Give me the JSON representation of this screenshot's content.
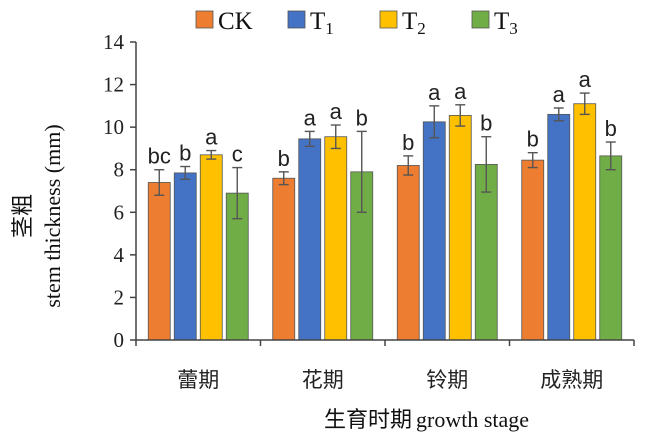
{
  "chart_data": {
    "type": "bar",
    "xlabel_cn": "生育时期",
    "xlabel_en": "growth stage",
    "ylabel_cn": "茎粗",
    "ylabel_en": "stem thickness (mm)",
    "ylim": [
      0,
      14
    ],
    "yticks": [
      0,
      2,
      4,
      6,
      8,
      10,
      12,
      14
    ],
    "categories": [
      "蕾期",
      "花期",
      "铃期",
      "成熟期"
    ],
    "legend_position": "top",
    "grid": false,
    "series": [
      {
        "name": "CK",
        "sub": "",
        "color": "#ED7D31",
        "values": [
          7.4,
          7.6,
          8.2,
          8.45
        ],
        "errors": [
          0.6,
          0.3,
          0.45,
          0.35
        ],
        "labels": [
          "bc",
          "b",
          "b",
          "b"
        ]
      },
      {
        "name": "T",
        "sub": "1",
        "color": "#4472C4",
        "values": [
          7.85,
          9.45,
          10.25,
          10.6
        ],
        "errors": [
          0.3,
          0.35,
          0.75,
          0.3
        ],
        "labels": [
          "b",
          "a",
          "a",
          "a"
        ]
      },
      {
        "name": "T",
        "sub": "2",
        "color": "#FFC000",
        "values": [
          8.7,
          9.55,
          10.55,
          11.1
        ],
        "errors": [
          0.2,
          0.55,
          0.5,
          0.5
        ],
        "labels": [
          "a",
          "a",
          "a",
          "a"
        ]
      },
      {
        "name": "T",
        "sub": "3",
        "color": "#70AD47",
        "values": [
          6.9,
          7.9,
          8.25,
          8.65
        ],
        "errors": [
          1.2,
          1.9,
          1.3,
          0.65
        ],
        "labels": [
          "c",
          "b",
          "b",
          "b"
        ]
      }
    ]
  }
}
